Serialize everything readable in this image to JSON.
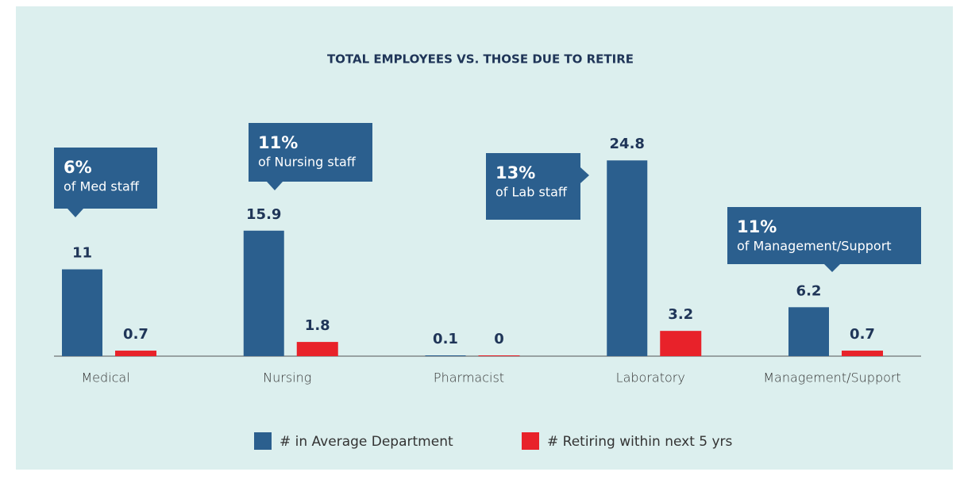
{
  "chart_data": {
    "type": "bar",
    "title": "TOTAL EMPLOYEES VS. THOSE DUE TO RETIRE",
    "categories": [
      "Medical",
      "Nursing",
      "Pharmacist",
      "Laboratory",
      "Management/Support"
    ],
    "series": [
      {
        "name": "# in Average Department",
        "color": "#2b5f8e",
        "values": [
          11,
          15.9,
          0.1,
          24.8,
          6.2
        ]
      },
      {
        "name": "# Retiring within next 5 yrs",
        "color": "#e8222a",
        "values": [
          0.7,
          1.8,
          0,
          3.2,
          0.7
        ]
      }
    ],
    "annotations": [
      {
        "percent": "6%",
        "text": "of Med staff"
      },
      {
        "percent": "11%",
        "text": "of Nursing staff"
      },
      {
        "percent": "13%",
        "text": "of Lab staff"
      },
      {
        "percent": "11%",
        "text": "of Management/Support"
      }
    ]
  }
}
